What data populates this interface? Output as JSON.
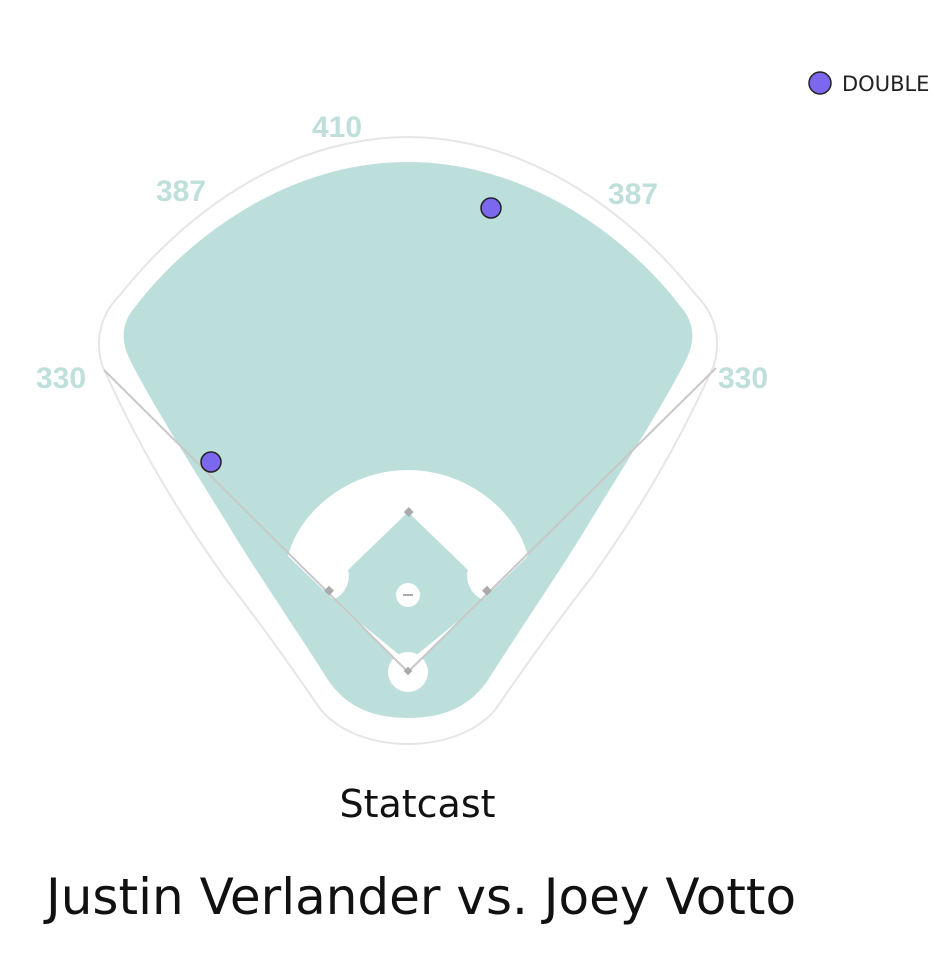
{
  "chart_data": {
    "type": "scatter",
    "title": "Justin Verlander vs. Joey Votto",
    "subtitle": "Statcast",
    "field_distances": {
      "left_line": "330",
      "left_center": "387",
      "center": "410",
      "right_center": "387",
      "right_line": "330"
    },
    "legend": [
      {
        "label": "DOUBLE",
        "color": "#7b68ee"
      }
    ],
    "series": [
      {
        "name": "DOUBLE",
        "color": "#7b68ee",
        "points": [
          {
            "x": 491,
            "y": 208
          },
          {
            "x": 211,
            "y": 462
          }
        ]
      }
    ]
  }
}
